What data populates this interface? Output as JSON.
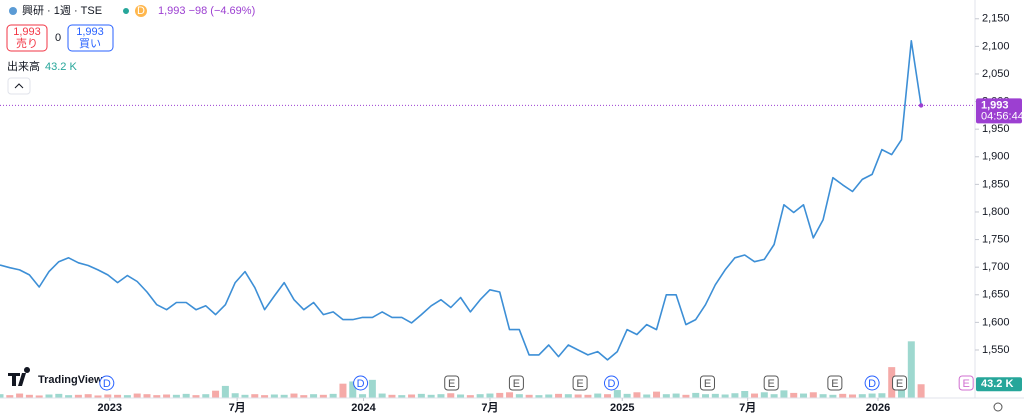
{
  "chart_data": {
    "type": "line",
    "header": {
      "symbol": "興研 · 1週 · TSE",
      "badge": "D",
      "quote": "1,993 −98 (−4.69%)",
      "sell_price": "1,993",
      "sell_label": "売り",
      "spread": "0",
      "buy_price": "1,993",
      "buy_label": "買い",
      "volume_title": "出来高",
      "volume_value": "43.2 K"
    },
    "logo": "TradingView",
    "xlim": [
      0,
      99.5
    ],
    "xticks": [
      {
        "value": 11.2,
        "label": "2023"
      },
      {
        "value": 24.2,
        "label": "7月"
      },
      {
        "value": 37.1,
        "label": "2024"
      },
      {
        "value": 50,
        "label": "7月"
      },
      {
        "value": 63.5,
        "label": "2025"
      },
      {
        "value": 76.3,
        "label": "7月"
      },
      {
        "value": 89.6,
        "label": "2026"
      }
    ],
    "ylim": [
      1463,
      2184
    ],
    "yticks": [
      {
        "value": 1550,
        "label": "1,550"
      },
      {
        "value": 1600,
        "label": "1,600"
      },
      {
        "value": 1650,
        "label": "1,650"
      },
      {
        "value": 1700,
        "label": "1,700"
      },
      {
        "value": 1750,
        "label": "1,750"
      },
      {
        "value": 1800,
        "label": "1,800"
      },
      {
        "value": 1850,
        "label": "1,850"
      },
      {
        "value": 1900,
        "label": "1,900"
      },
      {
        "value": 1950,
        "label": "1,950"
      },
      {
        "value": 2000,
        "label": "2,000"
      },
      {
        "value": 2050,
        "label": "2,050"
      },
      {
        "value": 2100,
        "label": "2,100"
      },
      {
        "value": 2150,
        "label": "2,150"
      }
    ],
    "series": [
      {
        "color": "#3d8fd6",
        "values": [
          1704,
          1699,
          1695,
          1686,
          1664,
          1692,
          1710,
          1717,
          1708,
          1703,
          1695,
          1686,
          1672,
          1685,
          1674,
          1655,
          1632,
          1623,
          1636,
          1636,
          1623,
          1630,
          1614,
          1632,
          1672,
          1692,
          1663,
          1623,
          1648,
          1672,
          1641,
          1623,
          1636,
          1614,
          1619,
          1605,
          1605,
          1609,
          1609,
          1619,
          1609,
          1609,
          1599,
          1614,
          1630,
          1641,
          1627,
          1645,
          1619,
          1641,
          1659,
          1655,
          1587,
          1587,
          1541,
          1541,
          1559,
          1538,
          1559,
          1550,
          1541,
          1547,
          1532,
          1547,
          1587,
          1578,
          1596,
          1587,
          1650,
          1650,
          1596,
          1605,
          1632,
          1668,
          1695,
          1717,
          1722,
          1710,
          1714,
          1741,
          1813,
          1799,
          1813,
          1753,
          1786,
          1862,
          1849,
          1837,
          1859,
          1868,
          1913,
          1904,
          1931,
          2110,
          1993
        ]
      }
    ],
    "volume": {
      "up_color": "#9ed8cf",
      "down_color": "#f5aaa8",
      "max": 1250,
      "label": "43.2 K",
      "label_value": 43.2,
      "values": [
        12,
        9,
        14,
        10,
        8,
        11,
        13,
        9,
        10,
        12,
        8,
        11,
        10,
        9,
        14,
        12,
        9,
        11,
        10,
        13,
        9,
        12,
        23,
        38,
        15,
        10,
        12,
        9,
        11,
        10,
        14,
        9,
        12,
        10,
        13,
        45,
        52,
        12,
        57,
        14,
        10,
        9,
        11,
        13,
        10,
        12,
        15,
        11,
        9,
        12,
        14,
        16,
        18,
        12,
        10,
        9,
        11,
        13,
        12,
        11,
        10,
        14,
        12,
        25,
        13,
        18,
        11,
        20,
        12,
        14,
        10,
        16,
        12,
        13,
        11,
        15,
        22,
        14,
        18,
        12,
        24,
        16,
        14,
        18,
        12,
        10,
        13,
        11,
        12,
        14,
        15,
        97,
        69,
        178,
        43.2
      ]
    },
    "last_price": {
      "value": 1993,
      "label": "1,993",
      "countdown": "04:56:44",
      "color": "#9c3fd1"
    },
    "events": [
      {
        "label": "D",
        "x": 10.9
      },
      {
        "label": "D",
        "x": 36.8
      },
      {
        "label": "E",
        "x": 46.1
      },
      {
        "label": "E",
        "x": 52.7
      },
      {
        "label": "E",
        "x": 59.2
      },
      {
        "label": "D",
        "x": 62.4
      },
      {
        "label": "E",
        "x": 72.2
      },
      {
        "label": "E",
        "x": 78.7
      },
      {
        "label": "E",
        "x": 85.2
      },
      {
        "label": "D",
        "x": 89
      },
      {
        "label": "E",
        "x": 91.8
      },
      {
        "label": "E",
        "x": 98.6
      }
    ]
  }
}
